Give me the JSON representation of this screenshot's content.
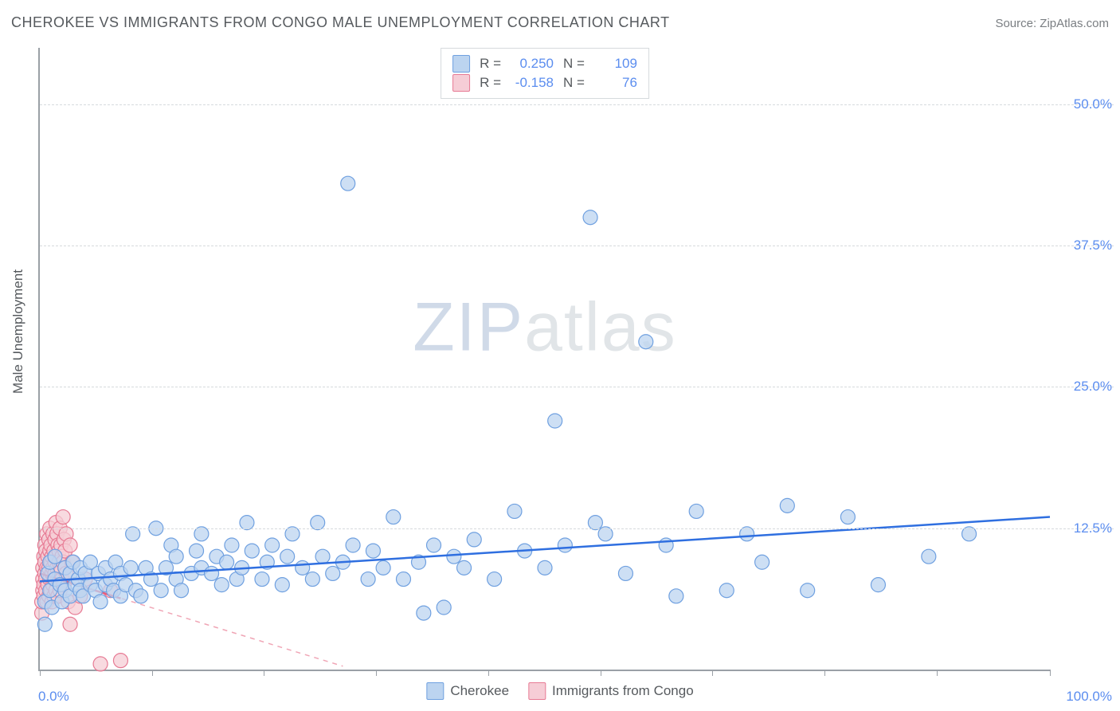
{
  "header": {
    "title": "CHEROKEE VS IMMIGRANTS FROM CONGO MALE UNEMPLOYMENT CORRELATION CHART",
    "source": "Source: ZipAtlas.com"
  },
  "ylabel": "Male Unemployment",
  "watermark": {
    "part1": "ZIP",
    "part2": "atlas"
  },
  "chart": {
    "type": "scatter",
    "xlim": [
      0,
      100
    ],
    "ylim": [
      0,
      55
    ],
    "xtick_positions": [
      0,
      11.1,
      22.2,
      33.3,
      44.4,
      55.5,
      66.6,
      77.7,
      88.8,
      100
    ],
    "ytick_positions": [
      12.5,
      25.0,
      37.5,
      50.0
    ],
    "ytick_labels": [
      "12.5%",
      "25.0%",
      "37.5%",
      "50.0%"
    ],
    "xaxis_label_left": "0.0%",
    "xaxis_label_right": "100.0%",
    "background_color": "#ffffff",
    "grid_color": "#d6dadd",
    "axis_color": "#9aa0a6",
    "marker_radius": 9,
    "marker_stroke_width": 1.2,
    "trend_line_width": 2.5,
    "trend_dash_width": 1.5
  },
  "series": {
    "cherokee": {
      "label": "Cherokee",
      "color_fill": "#bcd4f0",
      "color_stroke": "#6fa0e0",
      "trend_solid": {
        "x1": 0,
        "y1": 7.8,
        "x2": 100,
        "y2": 13.5,
        "color": "#2f6fe0"
      },
      "trend_dash": {
        "x1": 0,
        "y1": 7.8,
        "x2": 100,
        "y2": 13.5,
        "color": "#6fa0e0"
      },
      "R": "0.250",
      "N": "109",
      "points": [
        [
          0.5,
          4.0
        ],
        [
          0.5,
          6.0
        ],
        [
          0.8,
          8.5
        ],
        [
          1.0,
          7.0
        ],
        [
          1.0,
          9.5
        ],
        [
          1.2,
          5.5
        ],
        [
          1.5,
          8.0
        ],
        [
          1.5,
          10.0
        ],
        [
          2.0,
          7.5
        ],
        [
          2.2,
          6.0
        ],
        [
          2.5,
          9.0
        ],
        [
          2.5,
          7.0
        ],
        [
          3.0,
          8.5
        ],
        [
          3.0,
          6.5
        ],
        [
          3.3,
          9.5
        ],
        [
          3.5,
          7.5
        ],
        [
          3.8,
          8.0
        ],
        [
          4.0,
          7.0
        ],
        [
          4.0,
          9.0
        ],
        [
          4.3,
          6.5
        ],
        [
          4.5,
          8.5
        ],
        [
          5.0,
          7.5
        ],
        [
          5.0,
          9.5
        ],
        [
          5.5,
          7.0
        ],
        [
          5.8,
          8.5
        ],
        [
          6.0,
          6.0
        ],
        [
          6.5,
          9.0
        ],
        [
          6.5,
          7.5
        ],
        [
          7.0,
          8.0
        ],
        [
          7.3,
          7.0
        ],
        [
          7.5,
          9.5
        ],
        [
          8.0,
          6.5
        ],
        [
          8.0,
          8.5
        ],
        [
          8.5,
          7.5
        ],
        [
          9.0,
          9.0
        ],
        [
          9.2,
          12.0
        ],
        [
          9.5,
          7.0
        ],
        [
          10.0,
          6.5
        ],
        [
          10.5,
          9.0
        ],
        [
          11.0,
          8.0
        ],
        [
          11.5,
          12.5
        ],
        [
          12.0,
          7.0
        ],
        [
          12.5,
          9.0
        ],
        [
          13.0,
          11.0
        ],
        [
          13.5,
          8.0
        ],
        [
          13.5,
          10.0
        ],
        [
          14.0,
          7.0
        ],
        [
          15.0,
          8.5
        ],
        [
          15.5,
          10.5
        ],
        [
          16.0,
          9.0
        ],
        [
          16.0,
          12.0
        ],
        [
          17.0,
          8.5
        ],
        [
          17.5,
          10.0
        ],
        [
          18.0,
          7.5
        ],
        [
          18.5,
          9.5
        ],
        [
          19.0,
          11.0
        ],
        [
          19.5,
          8.0
        ],
        [
          20.0,
          9.0
        ],
        [
          20.5,
          13.0
        ],
        [
          21.0,
          10.5
        ],
        [
          22.0,
          8.0
        ],
        [
          22.5,
          9.5
        ],
        [
          23.0,
          11.0
        ],
        [
          24.0,
          7.5
        ],
        [
          24.5,
          10.0
        ],
        [
          25.0,
          12.0
        ],
        [
          26.0,
          9.0
        ],
        [
          27.0,
          8.0
        ],
        [
          27.5,
          13.0
        ],
        [
          28.0,
          10.0
        ],
        [
          29.0,
          8.5
        ],
        [
          30.0,
          9.5
        ],
        [
          30.5,
          43.0
        ],
        [
          31.0,
          11.0
        ],
        [
          32.5,
          8.0
        ],
        [
          33.0,
          10.5
        ],
        [
          34.0,
          9.0
        ],
        [
          35.0,
          13.5
        ],
        [
          36.0,
          8.0
        ],
        [
          37.5,
          9.5
        ],
        [
          38.0,
          5.0
        ],
        [
          39.0,
          11.0
        ],
        [
          40.0,
          5.5
        ],
        [
          41.0,
          10.0
        ],
        [
          42.0,
          9.0
        ],
        [
          43.0,
          11.5
        ],
        [
          45.0,
          8.0
        ],
        [
          47.0,
          14.0
        ],
        [
          48.0,
          10.5
        ],
        [
          50.0,
          9.0
        ],
        [
          51.0,
          22.0
        ],
        [
          52.0,
          11.0
        ],
        [
          54.5,
          40.0
        ],
        [
          55.0,
          13.0
        ],
        [
          56.0,
          12.0
        ],
        [
          58.0,
          8.5
        ],
        [
          60.0,
          29.0
        ],
        [
          62.0,
          11.0
        ],
        [
          63.0,
          6.5
        ],
        [
          65.0,
          14.0
        ],
        [
          68.0,
          7.0
        ],
        [
          70.0,
          12.0
        ],
        [
          71.5,
          9.5
        ],
        [
          74.0,
          14.5
        ],
        [
          76.0,
          7.0
        ],
        [
          80.0,
          13.5
        ],
        [
          83.0,
          7.5
        ],
        [
          88.0,
          10.0
        ],
        [
          92.0,
          12.0
        ]
      ]
    },
    "congo": {
      "label": "Immigrants from Congo",
      "color_fill": "#f6cdd6",
      "color_stroke": "#e77a94",
      "trend_solid": {
        "x1": 0,
        "y1": 8.5,
        "x2": 8,
        "y2": 6.3,
        "color": "#e85a7a"
      },
      "trend_dash": {
        "x1": 0,
        "y1": 8.5,
        "x2": 30,
        "y2": 0.3,
        "color": "#f0a5b5"
      },
      "R": "-0.158",
      "N": "76",
      "points": [
        [
          0.2,
          5.0
        ],
        [
          0.2,
          6.0
        ],
        [
          0.3,
          7.0
        ],
        [
          0.3,
          8.0
        ],
        [
          0.3,
          9.0
        ],
        [
          0.4,
          10.0
        ],
        [
          0.4,
          7.5
        ],
        [
          0.4,
          6.5
        ],
        [
          0.5,
          8.5
        ],
        [
          0.5,
          11.0
        ],
        [
          0.5,
          9.5
        ],
        [
          0.6,
          7.0
        ],
        [
          0.6,
          8.0
        ],
        [
          0.6,
          10.5
        ],
        [
          0.7,
          9.0
        ],
        [
          0.7,
          6.0
        ],
        [
          0.7,
          12.0
        ],
        [
          0.8,
          8.5
        ],
        [
          0.8,
          10.0
        ],
        [
          0.8,
          7.5
        ],
        [
          0.9,
          11.5
        ],
        [
          0.9,
          9.0
        ],
        [
          0.9,
          6.5
        ],
        [
          1.0,
          8.0
        ],
        [
          1.0,
          10.5
        ],
        [
          1.0,
          12.5
        ],
        [
          1.1,
          7.0
        ],
        [
          1.1,
          9.5
        ],
        [
          1.1,
          11.0
        ],
        [
          1.2,
          8.5
        ],
        [
          1.2,
          6.0
        ],
        [
          1.2,
          10.0
        ],
        [
          1.3,
          9.0
        ],
        [
          1.3,
          7.5
        ],
        [
          1.3,
          12.0
        ],
        [
          1.4,
          8.0
        ],
        [
          1.4,
          10.5
        ],
        [
          1.4,
          6.5
        ],
        [
          1.5,
          9.5
        ],
        [
          1.5,
          11.5
        ],
        [
          1.5,
          8.5
        ],
        [
          1.6,
          7.0
        ],
        [
          1.6,
          10.0
        ],
        [
          1.6,
          13.0
        ],
        [
          1.7,
          9.0
        ],
        [
          1.7,
          12.0
        ],
        [
          1.8,
          8.0
        ],
        [
          1.8,
          11.0
        ],
        [
          1.8,
          6.5
        ],
        [
          1.9,
          10.5
        ],
        [
          1.9,
          9.5
        ],
        [
          2.0,
          8.5
        ],
        [
          2.0,
          7.0
        ],
        [
          2.0,
          12.5
        ],
        [
          2.1,
          11.0
        ],
        [
          2.1,
          9.0
        ],
        [
          2.2,
          10.0
        ],
        [
          2.2,
          8.0
        ],
        [
          2.3,
          13.5
        ],
        [
          2.3,
          9.5
        ],
        [
          2.4,
          11.5
        ],
        [
          2.4,
          7.5
        ],
        [
          2.5,
          10.5
        ],
        [
          2.5,
          9.0
        ],
        [
          2.6,
          12.0
        ],
        [
          2.6,
          8.5
        ],
        [
          2.8,
          6.0
        ],
        [
          3.0,
          11.0
        ],
        [
          3.0,
          4.0
        ],
        [
          3.2,
          9.5
        ],
        [
          3.5,
          5.5
        ],
        [
          4.0,
          6.5
        ],
        [
          4.5,
          8.0
        ],
        [
          6.0,
          0.5
        ],
        [
          7.0,
          7.0
        ],
        [
          8.0,
          0.8
        ]
      ]
    }
  },
  "legend_bottom": [
    {
      "swatch_fill": "#bcd4f0",
      "swatch_stroke": "#6fa0e0",
      "label": "Cherokee"
    },
    {
      "swatch_fill": "#f6cdd6",
      "swatch_stroke": "#e77a94",
      "label": "Immigrants from Congo"
    }
  ],
  "legend_top_labels": {
    "r_label": "R =",
    "n_label": "N ="
  }
}
